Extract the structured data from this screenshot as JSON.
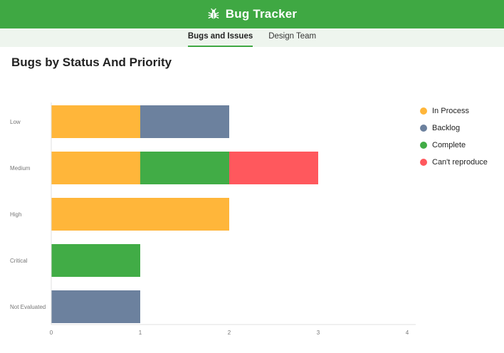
{
  "header": {
    "title": "Bug Tracker",
    "icon": "bug-icon"
  },
  "tabs": [
    {
      "label": "Bugs and Issues",
      "active": true
    },
    {
      "label": "Design Team",
      "active": false
    }
  ],
  "page": {
    "title": "Bugs by Status And Priority"
  },
  "colors": {
    "header_bg": "#3fa843",
    "In Process": "#ffb63a",
    "Backlog": "#6c819e",
    "Complete": "#41ac46",
    "Can't reproduce": "#ff585d"
  },
  "chart_data": {
    "type": "bar",
    "orientation": "horizontal",
    "stacked": true,
    "categories": [
      "Low",
      "Medium",
      "High",
      "Critical",
      "Not Evaluated"
    ],
    "series": [
      {
        "name": "In Process",
        "values": [
          1,
          1,
          2,
          0,
          0
        ]
      },
      {
        "name": "Backlog",
        "values": [
          1,
          0,
          0,
          0,
          1
        ]
      },
      {
        "name": "Complete",
        "values": [
          0,
          1,
          0,
          1,
          0
        ]
      },
      {
        "name": "Can't reproduce",
        "values": [
          0,
          1,
          0,
          0,
          0
        ]
      }
    ],
    "xlim": [
      0,
      4
    ],
    "xticks": [
      "0",
      "1",
      "2",
      "3",
      "4"
    ],
    "legend_position": "right",
    "grid": false
  }
}
